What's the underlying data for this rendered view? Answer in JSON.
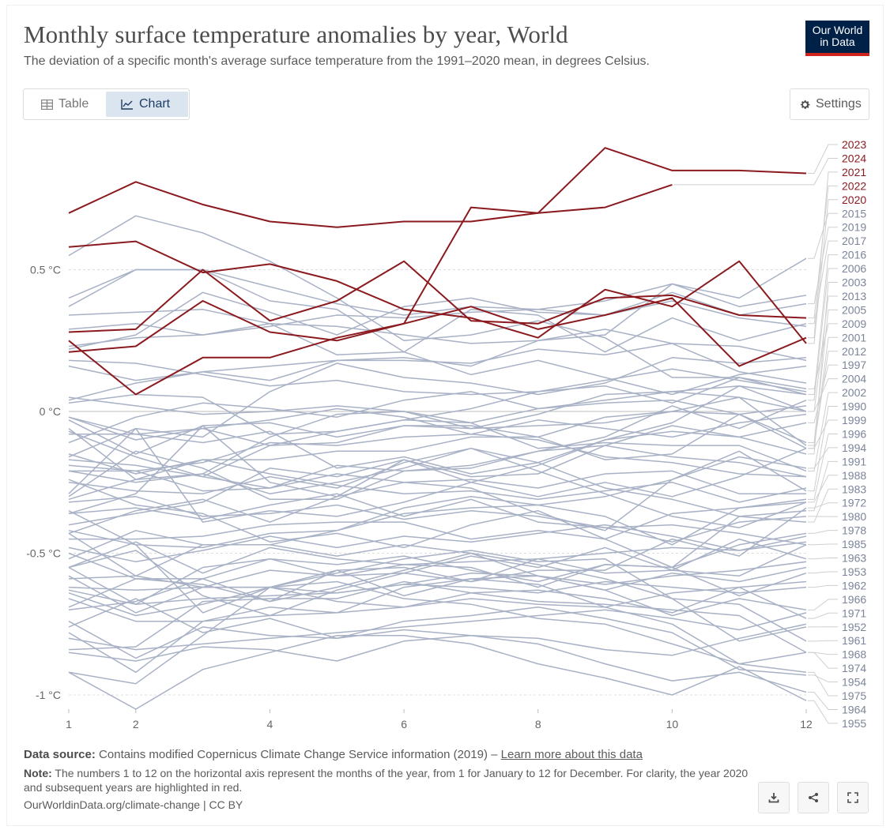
{
  "header": {
    "title": "Monthly surface temperature anomalies by year, World",
    "subtitle": "The deviation of a specific month's average surface temperature from the 1991–2020 mean, in degrees Celsius.",
    "logo_line1": "Our World",
    "logo_line2": "in Data"
  },
  "tabs": {
    "table_label": "Table",
    "chart_label": "Chart",
    "active": "Chart"
  },
  "settings_label": "Settings",
  "colors": {
    "highlight": "#8b1a1f",
    "muted": "#a8b1c5",
    "logo_bg": "#002147",
    "logo_accent": "#ce261e",
    "active_tab": "#dbe5f0"
  },
  "chart_data": {
    "type": "line",
    "x": [
      1,
      2,
      3,
      4,
      5,
      6,
      7,
      8,
      9,
      10,
      11,
      12
    ],
    "x_ticks": [
      1,
      2,
      4,
      6,
      8,
      10,
      12
    ],
    "y_ticks": [
      {
        "value": 0.5,
        "label": "0.5 °C"
      },
      {
        "value": 0,
        "label": "0 °C"
      },
      {
        "value": -0.5,
        "label": "-0.5 °C"
      },
      {
        "value": -1,
        "label": "-1 °C"
      }
    ],
    "ylim": [
      -1.05,
      0.95
    ],
    "xlim": [
      1,
      12
    ],
    "grid": true,
    "series": [
      {
        "name": "2023",
        "highlight": true,
        "values": [
          0.21,
          0.23,
          0.39,
          0.28,
          0.25,
          0.31,
          0.72,
          0.7,
          0.93,
          0.85,
          0.85,
          0.84
        ]
      },
      {
        "name": "2024",
        "highlight": true,
        "values": [
          0.7,
          0.81,
          0.73,
          0.67,
          0.65,
          0.67,
          0.67,
          0.7,
          0.72,
          0.8,
          null,
          null
        ]
      },
      {
        "name": "2021",
        "highlight": true,
        "values": [
          0.25,
          0.06,
          0.19,
          0.19,
          0.26,
          0.31,
          0.37,
          0.29,
          0.34,
          0.4,
          0.16,
          0.26
        ]
      },
      {
        "name": "2022",
        "highlight": true,
        "values": [
          0.28,
          0.29,
          0.5,
          0.32,
          0.39,
          0.53,
          0.32,
          0.31,
          0.4,
          0.41,
          0.34,
          0.33
        ]
      },
      {
        "name": "2020",
        "highlight": true,
        "values": [
          0.58,
          0.6,
          0.49,
          0.52,
          0.46,
          0.36,
          0.33,
          0.26,
          0.43,
          0.37,
          0.53,
          0.24
        ]
      },
      {
        "name": "2015",
        "values": [
          0.16,
          0.11,
          0.14,
          0.11,
          0.18,
          0.19,
          0.16,
          0.25,
          0.27,
          0.45,
          0.4,
          0.54
        ]
      },
      {
        "name": "2019",
        "values": [
          0.22,
          0.27,
          0.42,
          0.35,
          0.27,
          0.37,
          0.4,
          0.35,
          0.34,
          0.42,
          0.34,
          0.38
        ]
      },
      {
        "name": "2017",
        "values": [
          0.37,
          0.5,
          0.5,
          0.39,
          0.36,
          0.21,
          0.36,
          0.34,
          0.21,
          0.33,
          0.25,
          0.31
        ]
      },
      {
        "name": "2016",
        "values": [
          0.55,
          0.69,
          0.63,
          0.53,
          0.4,
          0.25,
          0.27,
          0.32,
          0.26,
          0.12,
          0.12,
          0.06
        ]
      },
      {
        "name": "2006",
        "values": [
          -0.3,
          -0.14,
          -0.2,
          -0.31,
          -0.31,
          -0.21,
          -0.19,
          -0.14,
          -0.09,
          0.02,
          -0.06,
          0.04
        ]
      },
      {
        "name": "2003",
        "values": [
          -0.07,
          -0.16,
          -0.23,
          -0.27,
          -0.19,
          -0.21,
          -0.2,
          -0.14,
          -0.12,
          -0.05,
          -0.09,
          -0.15
        ]
      },
      {
        "name": "2013",
        "values": [
          -0.08,
          -0.08,
          -0.06,
          -0.12,
          -0.11,
          -0.05,
          -0.06,
          -0.05,
          -0.04,
          0.0,
          0.05,
          0.0
        ]
      },
      {
        "name": "2005",
        "values": [
          -0.03,
          -0.15,
          -0.05,
          -0.04,
          -0.09,
          -0.05,
          -0.05,
          -0.09,
          -0.02,
          0.0,
          -0.01,
          -0.11
        ]
      },
      {
        "name": "2009",
        "values": [
          -0.17,
          -0.19,
          -0.23,
          -0.12,
          -0.07,
          -0.03,
          0.01,
          0.07,
          0.09,
          0.03,
          0.12,
          0.08
        ]
      },
      {
        "name": "2001",
        "values": [
          -0.31,
          -0.24,
          -0.17,
          -0.17,
          -0.14,
          -0.14,
          -0.09,
          -0.09,
          -0.17,
          -0.15,
          -0.01,
          -0.13
        ]
      },
      {
        "name": "2012",
        "values": [
          -0.21,
          -0.25,
          -0.22,
          -0.09,
          -0.01,
          0.0,
          -0.06,
          -0.01,
          0.06,
          0.07,
          0.05,
          -0.12
        ]
      },
      {
        "name": "1997",
        "values": [
          -0.43,
          -0.35,
          -0.31,
          -0.39,
          -0.3,
          -0.17,
          -0.25,
          -0.19,
          -0.1,
          -0.07,
          -0.09,
          -0.04
        ]
      },
      {
        "name": "2004",
        "values": [
          -0.02,
          -0.08,
          -0.11,
          -0.07,
          -0.2,
          -0.16,
          -0.22,
          -0.18,
          -0.1,
          -0.04,
          0.09,
          0.0
        ]
      },
      {
        "name": "2002",
        "values": [
          0.03,
          0.06,
          0.05,
          -0.08,
          -0.07,
          -0.03,
          -0.04,
          -0.13,
          -0.11,
          -0.12,
          -0.12,
          -0.21
        ]
      },
      {
        "name": "1990",
        "values": [
          -0.36,
          -0.29,
          -0.05,
          -0.25,
          -0.3,
          -0.25,
          -0.27,
          -0.36,
          -0.42,
          -0.24,
          -0.14,
          -0.28
        ]
      },
      {
        "name": "1999",
        "values": [
          -0.29,
          -0.06,
          -0.39,
          -0.35,
          -0.37,
          -0.32,
          -0.25,
          -0.3,
          -0.25,
          -0.3,
          -0.23,
          -0.13
        ]
      },
      {
        "name": "1996",
        "values": [
          -0.35,
          -0.47,
          -0.48,
          -0.43,
          -0.42,
          -0.34,
          -0.3,
          -0.33,
          -0.37,
          -0.47,
          -0.34,
          -0.31
        ]
      },
      {
        "name": "1994",
        "values": [
          -0.43,
          -0.58,
          -0.47,
          -0.47,
          -0.42,
          -0.36,
          -0.34,
          -0.33,
          -0.3,
          -0.24,
          -0.16,
          -0.2
        ]
      },
      {
        "name": "1991",
        "values": [
          -0.25,
          -0.28,
          -0.29,
          -0.23,
          -0.27,
          -0.18,
          -0.13,
          -0.18,
          -0.27,
          -0.31,
          -0.37,
          -0.35
        ]
      },
      {
        "name": "1988",
        "values": [
          -0.06,
          -0.24,
          -0.22,
          -0.29,
          -0.25,
          -0.2,
          -0.13,
          -0.21,
          -0.29,
          -0.37,
          -0.41,
          -0.32
        ]
      },
      {
        "name": "1983",
        "values": [
          -0.24,
          -0.33,
          -0.36,
          -0.46,
          -0.43,
          -0.48,
          -0.4,
          -0.35,
          -0.45,
          -0.55,
          -0.37,
          -0.39
        ]
      },
      {
        "name": "1972",
        "values": [
          -0.92,
          -0.96,
          -0.79,
          -0.62,
          -0.56,
          -0.55,
          -0.6,
          -0.56,
          -0.56,
          -0.45,
          -0.51,
          -0.34
        ]
      },
      {
        "name": "1980",
        "values": [
          -0.36,
          -0.34,
          -0.38,
          -0.33,
          -0.29,
          -0.37,
          -0.31,
          -0.39,
          -0.41,
          -0.46,
          -0.39,
          -0.37
        ]
      },
      {
        "name": "1978",
        "values": [
          -0.55,
          -0.46,
          -0.57,
          -0.48,
          -0.52,
          -0.54,
          -0.55,
          -0.62,
          -0.54,
          -0.55,
          -0.47,
          -0.43
        ]
      },
      {
        "name": "1985",
        "values": [
          -0.55,
          -0.68,
          -0.55,
          -0.52,
          -0.58,
          -0.57,
          -0.6,
          -0.52,
          -0.57,
          -0.56,
          -0.58,
          -0.47
        ]
      },
      {
        "name": "1963",
        "values": [
          -0.55,
          -0.49,
          -0.65,
          -0.72,
          -0.63,
          -0.57,
          -0.51,
          -0.55,
          -0.48,
          -0.56,
          -0.45,
          -0.52
        ]
      },
      {
        "name": "1953",
        "values": [
          -0.69,
          -0.59,
          -0.59,
          -0.52,
          -0.54,
          -0.51,
          -0.56,
          -0.6,
          -0.54,
          -0.55,
          -0.65,
          -0.57
        ]
      },
      {
        "name": "1962",
        "values": [
          -0.59,
          -0.58,
          -0.62,
          -0.62,
          -0.64,
          -0.61,
          -0.62,
          -0.64,
          -0.6,
          -0.62,
          -0.64,
          -0.62
        ]
      },
      {
        "name": "1966",
        "values": [
          -0.5,
          -0.59,
          -0.61,
          -0.67,
          -0.62,
          -0.56,
          -0.5,
          -0.58,
          -0.63,
          -0.72,
          -0.66,
          -0.7
        ]
      },
      {
        "name": "1971",
        "values": [
          -0.58,
          -0.71,
          -0.62,
          -0.62,
          -0.67,
          -0.69,
          -0.64,
          -0.63,
          -0.66,
          -0.71,
          -0.62,
          -0.73
        ]
      },
      {
        "name": "1952",
        "values": [
          -0.42,
          -0.47,
          -0.71,
          -0.62,
          -0.57,
          -0.52,
          -0.49,
          -0.53,
          -0.52,
          -0.66,
          -0.81,
          -0.76
        ]
      },
      {
        "name": "1961",
        "values": [
          -0.52,
          -0.42,
          -0.47,
          -0.47,
          -0.51,
          -0.47,
          -0.5,
          -0.54,
          -0.59,
          -0.66,
          -0.68,
          -0.81
        ]
      },
      {
        "name": "1968",
        "values": [
          -0.84,
          -0.83,
          -0.67,
          -0.66,
          -0.66,
          -0.6,
          -0.64,
          -0.67,
          -0.68,
          -0.7,
          -0.72,
          -0.85
        ]
      },
      {
        "name": "1974",
        "values": [
          -0.78,
          -0.92,
          -0.74,
          -0.69,
          -0.71,
          -0.62,
          -0.59,
          -0.61,
          -0.69,
          -0.75,
          -0.89,
          -0.85
        ]
      },
      {
        "name": "1954",
        "values": [
          -0.76,
          -0.66,
          -0.78,
          -0.73,
          -0.8,
          -0.74,
          -0.72,
          -0.69,
          -0.73,
          -0.78,
          -0.91,
          -0.93
        ]
      },
      {
        "name": "1975",
        "values": [
          -0.64,
          -0.72,
          -0.68,
          -0.62,
          -0.6,
          -0.66,
          -0.68,
          -0.73,
          -0.75,
          -0.82,
          -0.89,
          -0.92
        ]
      },
      {
        "name": "1964",
        "values": [
          -0.74,
          -0.87,
          -0.76,
          -0.79,
          -0.8,
          -0.77,
          -0.79,
          -0.82,
          -0.89,
          -0.95,
          -0.92,
          -0.99
        ]
      },
      {
        "name": "1955",
        "values": [
          -0.92,
          -1.05,
          -0.91,
          -0.85,
          -0.79,
          -0.79,
          -0.82,
          -0.89,
          -0.94,
          -1.0,
          -0.9,
          -1.02
        ]
      },
      {
        "name": "",
        "values": [
          -0.16,
          -0.06,
          -0.09,
          0.07,
          0.17,
          0.12,
          0.1,
          0.06,
          0.1,
          0.19,
          0.17,
          0.19
        ]
      },
      {
        "name": "",
        "values": [
          0.29,
          0.31,
          0.27,
          0.31,
          0.2,
          0.21,
          0.13,
          0.18,
          0.12,
          0.06,
          0.13,
          0.16
        ]
      },
      {
        "name": "",
        "values": [
          0.04,
          0.1,
          0.14,
          0.16,
          0.18,
          0.18,
          0.17,
          0.22,
          0.2,
          0.24,
          0.14,
          0.1
        ]
      },
      {
        "name": "",
        "values": [
          0.23,
          0.26,
          0.27,
          0.3,
          0.34,
          0.33,
          0.35,
          0.36,
          0.34,
          0.39,
          0.33,
          0.3
        ]
      },
      {
        "name": "",
        "values": [
          0.05,
          0.02,
          -0.01,
          0.0,
          0.02,
          0.0,
          -0.04,
          0.01,
          0.04,
          0.07,
          0.09,
          0.06
        ]
      },
      {
        "name": "",
        "values": [
          -0.11,
          -0.02,
          0.03,
          0.01,
          -0.02,
          0.04,
          0.07,
          0.01,
          0.03,
          0.04,
          -0.01,
          0.02
        ]
      },
      {
        "name": "",
        "values": [
          0.18,
          0.17,
          0.13,
          0.09,
          0.11,
          0.07,
          0.06,
          0.07,
          0.11,
          0.15,
          0.11,
          0.07
        ]
      },
      {
        "name": "",
        "values": [
          -0.02,
          -0.1,
          -0.06,
          -0.03,
          0.01,
          -0.02,
          -0.08,
          -0.03,
          -0.06,
          -0.09,
          -0.04,
          -0.01
        ]
      },
      {
        "name": "",
        "values": [
          -0.19,
          -0.21,
          -0.18,
          -0.11,
          -0.12,
          -0.09,
          -0.08,
          -0.1,
          -0.16,
          -0.18,
          -0.22,
          -0.23
        ]
      },
      {
        "name": "",
        "values": [
          -0.21,
          -0.21,
          -0.28,
          -0.27,
          -0.22,
          -0.25,
          -0.24,
          -0.27,
          -0.22,
          -0.21,
          -0.29,
          -0.29
        ]
      },
      {
        "name": "",
        "values": [
          -0.45,
          -0.45,
          -0.44,
          -0.4,
          -0.39,
          -0.39,
          -0.45,
          -0.42,
          -0.45,
          -0.36,
          -0.34,
          -0.32
        ]
      },
      {
        "name": "",
        "values": [
          -0.48,
          -0.53,
          -0.49,
          -0.44,
          -0.48,
          -0.44,
          -0.46,
          -0.43,
          -0.4,
          -0.44,
          -0.49,
          -0.44
        ]
      },
      {
        "name": "",
        "values": [
          -0.62,
          -0.63,
          -0.62,
          -0.56,
          -0.58,
          -0.54,
          -0.53,
          -0.52,
          -0.5,
          -0.48,
          -0.49,
          -0.46
        ]
      },
      {
        "name": "",
        "values": [
          -0.63,
          -0.68,
          -0.66,
          -0.65,
          -0.64,
          -0.61,
          -0.57,
          -0.58,
          -0.63,
          -0.57,
          -0.6,
          -0.55
        ]
      },
      {
        "name": "",
        "values": [
          -0.66,
          -0.74,
          -0.74,
          -0.72,
          -0.71,
          -0.69,
          -0.66,
          -0.68,
          -0.69,
          -0.64,
          -0.62,
          -0.6
        ]
      },
      {
        "name": "",
        "values": [
          -0.8,
          -0.84,
          -0.82,
          -0.8,
          -0.78,
          -0.76,
          -0.74,
          -0.72,
          -0.7,
          -0.73,
          -0.77,
          -0.71
        ]
      },
      {
        "name": "",
        "values": [
          -0.85,
          -0.88,
          -0.83,
          -0.84,
          -0.88,
          -0.81,
          -0.79,
          -0.8,
          -0.84,
          -0.86,
          -0.8,
          -0.75
        ]
      },
      {
        "name": "",
        "values": [
          -0.32,
          -0.3,
          -0.37,
          -0.36,
          -0.33,
          -0.38,
          -0.35,
          -0.37,
          -0.41,
          -0.4,
          -0.43,
          -0.47
        ]
      },
      {
        "name": "",
        "values": [
          -0.15,
          -0.22,
          -0.17,
          -0.22,
          -0.26,
          -0.29,
          -0.28,
          -0.31,
          -0.28,
          -0.25,
          -0.32,
          -0.27
        ]
      },
      {
        "name": "",
        "values": [
          0.34,
          0.35,
          0.36,
          0.31,
          0.3,
          0.27,
          0.24,
          0.25,
          0.29,
          0.24,
          0.23,
          0.18
        ]
      },
      {
        "name": "",
        "values": [
          0.4,
          0.5,
          0.5,
          0.44,
          0.38,
          0.34,
          0.37,
          0.36,
          0.39,
          0.45,
          0.37,
          0.41
        ]
      },
      {
        "name": "",
        "values": [
          -0.4,
          -0.36,
          -0.32,
          -0.2,
          -0.23,
          -0.17,
          -0.23,
          -0.22,
          -0.12,
          -0.16,
          -0.18,
          -0.23
        ]
      },
      {
        "name": "",
        "values": [
          -0.7,
          -0.67,
          -0.59,
          -0.67,
          -0.56,
          -0.65,
          -0.59,
          -0.58,
          -0.61,
          -0.58,
          -0.56,
          -0.53
        ]
      }
    ]
  },
  "footer": {
    "source_label": "Data source:",
    "source_text": "Contains modified Copernicus Climate Change Service information (2019) – ",
    "source_link": "Learn more about this data",
    "note_label": "Note:",
    "note_text": "The numbers 1 to 12 on the horizontal axis represent the months of the year, from 1 for January to 12 for December. For clarity, the year 2020 and subsequent years are highlighted in red.",
    "credit": "OurWorldinData.org/climate-change | CC BY"
  },
  "actions": {
    "download_icon": "download-icon",
    "share_icon": "share-icon",
    "fullscreen_icon": "fullscreen-icon"
  }
}
